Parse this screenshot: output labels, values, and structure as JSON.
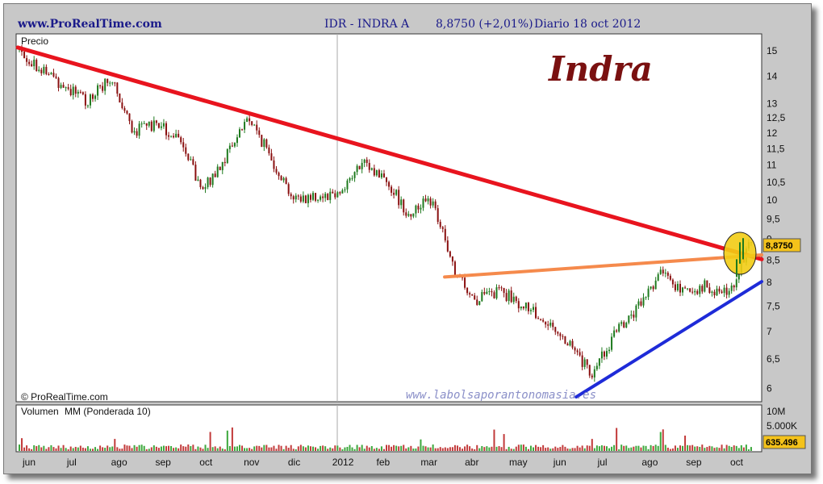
{
  "header": {
    "site": "www.ProRealTime.com",
    "instrument": "IDR - INDRA A",
    "price": "8,8750 (+2,01%)",
    "period": "Diario  18 oct 2012"
  },
  "panel": {
    "price_label": "Precio",
    "copyright": "© ProRealTime.com",
    "watermark": "www.labolsaporantonomasia.es",
    "title": "Indra",
    "last_price_tag": "8,8750",
    "volume_title_a": "Volumen",
    "volume_title_b": "MM (Ponderada 10)",
    "volume_last_tag": "635.496"
  },
  "colors": {
    "resistance_line": "#e8141e",
    "support_line": "#1e2bd8",
    "neckline": "#f58a4c",
    "highlight_circle": "#f2cc14",
    "title": "#7a1010",
    "candle_up": "#1e7a1e",
    "candle_down": "#8a1010",
    "volume_green": "#3ca83c",
    "volume_red": "#c23a3a"
  },
  "chart_data": {
    "type": "candlestick",
    "x_axis_labels": [
      "jun",
      "jul",
      "ago",
      "sep",
      "oct",
      "nov",
      "dic",
      "2012",
      "feb",
      "mar",
      "abr",
      "may",
      "jun",
      "jul",
      "ago",
      "sep",
      "oct"
    ],
    "y_axis_labels": [
      "15",
      "14",
      "13",
      "12,5",
      "12",
      "11,5",
      "11",
      "10,5",
      "10",
      "9,5",
      "9",
      "8,5",
      "8",
      "7,5",
      "7",
      "6,5",
      "6"
    ],
    "y_scale": "log",
    "ylim": [
      5.8,
      15.6
    ],
    "volume_axis_labels": [
      "10M",
      "5.000K"
    ],
    "price_path": [
      {
        "d": "jun",
        "v": 15.0
      },
      {
        "d": "jun mid",
        "v": 14.2
      },
      {
        "d": "jul",
        "v": 13.6
      },
      {
        "d": "jul mid",
        "v": 13.0
      },
      {
        "d": "ago",
        "v": 14.0
      },
      {
        "d": "ago mid",
        "v": 12.0
      },
      {
        "d": "sep",
        "v": 12.3
      },
      {
        "d": "sep mid",
        "v": 11.7
      },
      {
        "d": "oct",
        "v": 10.2
      },
      {
        "d": "oct mid",
        "v": 11.2
      },
      {
        "d": "nov",
        "v": 12.5
      },
      {
        "d": "nov mid",
        "v": 11.2
      },
      {
        "d": "dic",
        "v": 10.0
      },
      {
        "d": "dic mid",
        "v": 10.1
      },
      {
        "d": "2012",
        "v": 10.2
      },
      {
        "d": "feb",
        "v": 11.0
      },
      {
        "d": "feb mid",
        "v": 10.6
      },
      {
        "d": "mar",
        "v": 9.6
      },
      {
        "d": "mar mid",
        "v": 10.0
      },
      {
        "d": "abr",
        "v": 8.2
      },
      {
        "d": "abr mid",
        "v": 7.6
      },
      {
        "d": "may",
        "v": 7.8
      },
      {
        "d": "may mid",
        "v": 7.5
      },
      {
        "d": "jun",
        "v": 7.2
      },
      {
        "d": "jun mid",
        "v": 6.8
      },
      {
        "d": "jul",
        "v": 6.2
      },
      {
        "d": "jul mid",
        "v": 6.9
      },
      {
        "d": "ago",
        "v": 7.4
      },
      {
        "d": "ago mid",
        "v": 8.2
      },
      {
        "d": "sep",
        "v": 7.8
      },
      {
        "d": "sep mid",
        "v": 7.9
      },
      {
        "d": "oct",
        "v": 7.7
      },
      {
        "d": "oct mid",
        "v": 8.88
      }
    ],
    "trend_lines": [
      {
        "name": "resistance",
        "from": {
          "d": "jun",
          "v": 15.1
        },
        "to": {
          "d": "oct end",
          "v": 8.5
        }
      },
      {
        "name": "neckline",
        "from": {
          "d": "abr",
          "v": 8.1
        },
        "to": {
          "d": "oct end",
          "v": 8.6
        }
      },
      {
        "name": "support",
        "from": {
          "d": "jul",
          "v": 5.85
        },
        "to": {
          "d": "oct end",
          "v": 8.0
        }
      }
    ],
    "last_value": 8.875
  }
}
